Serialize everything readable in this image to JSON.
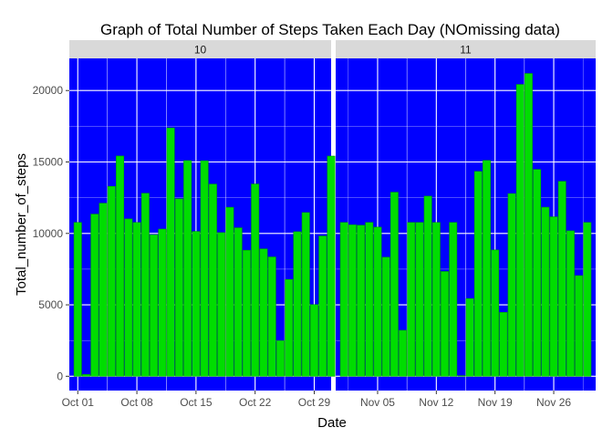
{
  "chart_data": {
    "type": "bar",
    "title": "Graph of Total Number of Steps Taken Each Day (NOmissing data)",
    "xlabel": "Date",
    "ylabel": "Total_number_of_steps",
    "ylim": [
      -1000,
      22250
    ],
    "yticks": [
      0,
      5000,
      10000,
      15000,
      20000
    ],
    "ytick_labels": [
      "0",
      "5000",
      "10000",
      "15000",
      "20000"
    ],
    "grid": true,
    "colors": {
      "panel_bg": "#0000ff",
      "bar_fill": "#00dd00",
      "bar_outline": "#00a000",
      "strip_bg": "#d9d9d9",
      "grid": "#ffffff"
    },
    "facets": [
      {
        "label": "10",
        "xlim": [
          "2012-09-30",
          "2012-10-31"
        ],
        "xticks": [
          "2012-10-01",
          "2012-10-08",
          "2012-10-15",
          "2012-10-22",
          "2012-10-29"
        ],
        "xtick_labels": [
          "Oct 01",
          "Oct 08",
          "Oct 15",
          "Oct 22",
          "Oct 29"
        ],
        "dates": [
          "2012-10-01",
          "2012-10-02",
          "2012-10-03",
          "2012-10-04",
          "2012-10-05",
          "2012-10-06",
          "2012-10-07",
          "2012-10-08",
          "2012-10-09",
          "2012-10-10",
          "2012-10-11",
          "2012-10-12",
          "2012-10-13",
          "2012-10-14",
          "2012-10-15",
          "2012-10-16",
          "2012-10-17",
          "2012-10-18",
          "2012-10-19",
          "2012-10-20",
          "2012-10-21",
          "2012-10-22",
          "2012-10-23",
          "2012-10-24",
          "2012-10-25",
          "2012-10-26",
          "2012-10-27",
          "2012-10-28",
          "2012-10-29",
          "2012-10-30",
          "2012-10-31"
        ],
        "values": [
          10766,
          126,
          11352,
          12116,
          13294,
          15420,
          11015,
          10766,
          12811,
          9900,
          10304,
          17382,
          12426,
          15098,
          10139,
          15084,
          13452,
          10056,
          11829,
          10395,
          8821,
          13460,
          8918,
          8355,
          2492,
          6778,
          10119,
          11458,
          5018,
          9819,
          15414
        ]
      },
      {
        "label": "11",
        "xlim": [
          "2012-10-31",
          "2012-12-01"
        ],
        "xticks": [
          "2012-11-05",
          "2012-11-12",
          "2012-11-19",
          "2012-11-26"
        ],
        "xtick_labels": [
          "Nov 05",
          "Nov 12",
          "Nov 19",
          "Nov 26"
        ],
        "dates": [
          "2012-11-01",
          "2012-11-02",
          "2012-11-03",
          "2012-11-04",
          "2012-11-05",
          "2012-11-06",
          "2012-11-07",
          "2012-11-08",
          "2012-11-09",
          "2012-11-10",
          "2012-11-11",
          "2012-11-12",
          "2012-11-13",
          "2012-11-14",
          "2012-11-15",
          "2012-11-16",
          "2012-11-17",
          "2012-11-18",
          "2012-11-19",
          "2012-11-20",
          "2012-11-21",
          "2012-11-22",
          "2012-11-23",
          "2012-11-24",
          "2012-11-25",
          "2012-11-26",
          "2012-11-27",
          "2012-11-28",
          "2012-11-29",
          "2012-11-30"
        ],
        "values": [
          10766,
          10600,
          10571,
          10766,
          10439,
          8334,
          12883,
          3219,
          10766,
          10766,
          12608,
          10765,
          7336,
          10766,
          41,
          5441,
          14339,
          15110,
          8841,
          4472,
          12787,
          20427,
          21194,
          14478,
          11834,
          11162,
          13646,
          10183,
          7047,
          10766
        ]
      }
    ]
  }
}
